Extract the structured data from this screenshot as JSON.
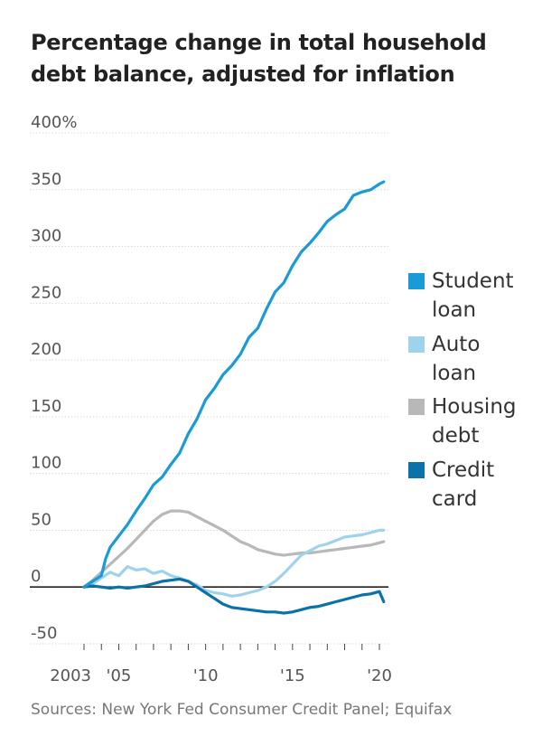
{
  "title": "Percentage change in total household debt balance, adjusted for inflation",
  "source": "Sources: New York Fed Consumer Credit Panel; Equifax",
  "chart_data": {
    "type": "line",
    "xlim": [
      2003,
      2020.5
    ],
    "ylim": [
      -50,
      400
    ],
    "grid": true,
    "y_ticks": [
      {
        "value": 400,
        "label": "400%"
      },
      {
        "value": 350,
        "label": "350"
      },
      {
        "value": 300,
        "label": "300"
      },
      {
        "value": 250,
        "label": "250"
      },
      {
        "value": 200,
        "label": "200"
      },
      {
        "value": 150,
        "label": "150"
      },
      {
        "value": 100,
        "label": "100"
      },
      {
        "value": 50,
        "label": "50"
      },
      {
        "value": 0,
        "label": "0"
      },
      {
        "value": -50,
        "label": "-50"
      }
    ],
    "x_ticks": [
      {
        "value": 2003,
        "label": "2003"
      },
      {
        "value": 2005,
        "label": "'05"
      },
      {
        "value": 2010,
        "label": "'10"
      },
      {
        "value": 2015,
        "label": "'15"
      },
      {
        "value": 2020,
        "label": "'20"
      }
    ],
    "legend_position": "right",
    "series": [
      {
        "name": "Student loan",
        "color": "#1a9ad6",
        "x": [
          2003.0,
          2003.5,
          2004.0,
          2004.25,
          2004.5,
          2005.0,
          2005.5,
          2006.0,
          2006.5,
          2007.0,
          2007.5,
          2008.0,
          2008.5,
          2009.0,
          2009.5,
          2010.0,
          2010.5,
          2011.0,
          2011.5,
          2012.0,
          2012.5,
          2013.0,
          2013.5,
          2014.0,
          2014.5,
          2015.0,
          2015.5,
          2016.0,
          2016.5,
          2017.0,
          2017.5,
          2018.0,
          2018.5,
          2019.0,
          2019.5,
          2020.0,
          2020.25
        ],
        "y": [
          0,
          5,
          10,
          25,
          35,
          45,
          55,
          67,
          78,
          90,
          97,
          108,
          118,
          135,
          148,
          165,
          175,
          187,
          195,
          205,
          220,
          228,
          245,
          260,
          268,
          283,
          295,
          303,
          312,
          322,
          328,
          333,
          345,
          348,
          350,
          355,
          357
        ]
      },
      {
        "name": "Auto loan",
        "color": "#9fd3ec",
        "x": [
          2003.0,
          2003.5,
          2004.0,
          2004.5,
          2005.0,
          2005.5,
          2006.0,
          2006.5,
          2007.0,
          2007.5,
          2008.0,
          2008.5,
          2009.0,
          2009.5,
          2010.0,
          2010.5,
          2011.0,
          2011.5,
          2012.0,
          2012.5,
          2013.0,
          2013.5,
          2014.0,
          2014.5,
          2015.0,
          2015.5,
          2016.0,
          2016.5,
          2017.0,
          2017.5,
          2018.0,
          2018.5,
          2019.0,
          2019.5,
          2020.0,
          2020.25
        ],
        "y": [
          0,
          3,
          8,
          13,
          10,
          18,
          15,
          16,
          12,
          14,
          10,
          8,
          5,
          2,
          -3,
          -5,
          -6,
          -8,
          -7,
          -5,
          -3,
          0,
          5,
          12,
          20,
          28,
          32,
          36,
          38,
          41,
          44,
          45,
          46,
          48,
          50,
          50
        ]
      },
      {
        "name": "Housing debt",
        "color": "#b8b8b8",
        "x": [
          2003.0,
          2003.5,
          2004.0,
          2004.5,
          2005.0,
          2005.5,
          2006.0,
          2006.5,
          2007.0,
          2007.5,
          2008.0,
          2008.5,
          2009.0,
          2009.5,
          2010.0,
          2010.5,
          2011.0,
          2011.5,
          2012.0,
          2012.5,
          2013.0,
          2013.5,
          2014.0,
          2014.5,
          2015.0,
          2015.5,
          2016.0,
          2016.5,
          2017.0,
          2017.5,
          2018.0,
          2018.5,
          2019.0,
          2019.5,
          2020.0,
          2020.25
        ],
        "y": [
          0,
          6,
          13,
          20,
          27,
          34,
          42,
          50,
          58,
          64,
          67,
          67,
          66,
          62,
          58,
          54,
          50,
          45,
          40,
          37,
          33,
          31,
          29,
          28,
          29,
          30,
          30,
          31,
          32,
          33,
          34,
          35,
          36,
          37,
          39,
          40
        ]
      },
      {
        "name": "Credit card",
        "color": "#0a72a8",
        "x": [
          2003.0,
          2003.5,
          2004.0,
          2004.5,
          2005.0,
          2005.5,
          2006.0,
          2006.5,
          2007.0,
          2007.5,
          2008.0,
          2008.5,
          2009.0,
          2009.5,
          2010.0,
          2010.5,
          2011.0,
          2011.5,
          2012.0,
          2012.5,
          2013.0,
          2013.5,
          2014.0,
          2014.5,
          2015.0,
          2015.5,
          2016.0,
          2016.5,
          2017.0,
          2017.5,
          2018.0,
          2018.5,
          2019.0,
          2019.5,
          2020.0,
          2020.25
        ],
        "y": [
          0,
          1,
          0,
          -1,
          0,
          -1,
          0,
          1,
          3,
          5,
          6,
          7,
          5,
          0,
          -5,
          -10,
          -15,
          -18,
          -19,
          -20,
          -21,
          -22,
          -22,
          -23,
          -22,
          -20,
          -18,
          -17,
          -15,
          -13,
          -11,
          -9,
          -7,
          -6,
          -4,
          -13
        ]
      }
    ]
  }
}
